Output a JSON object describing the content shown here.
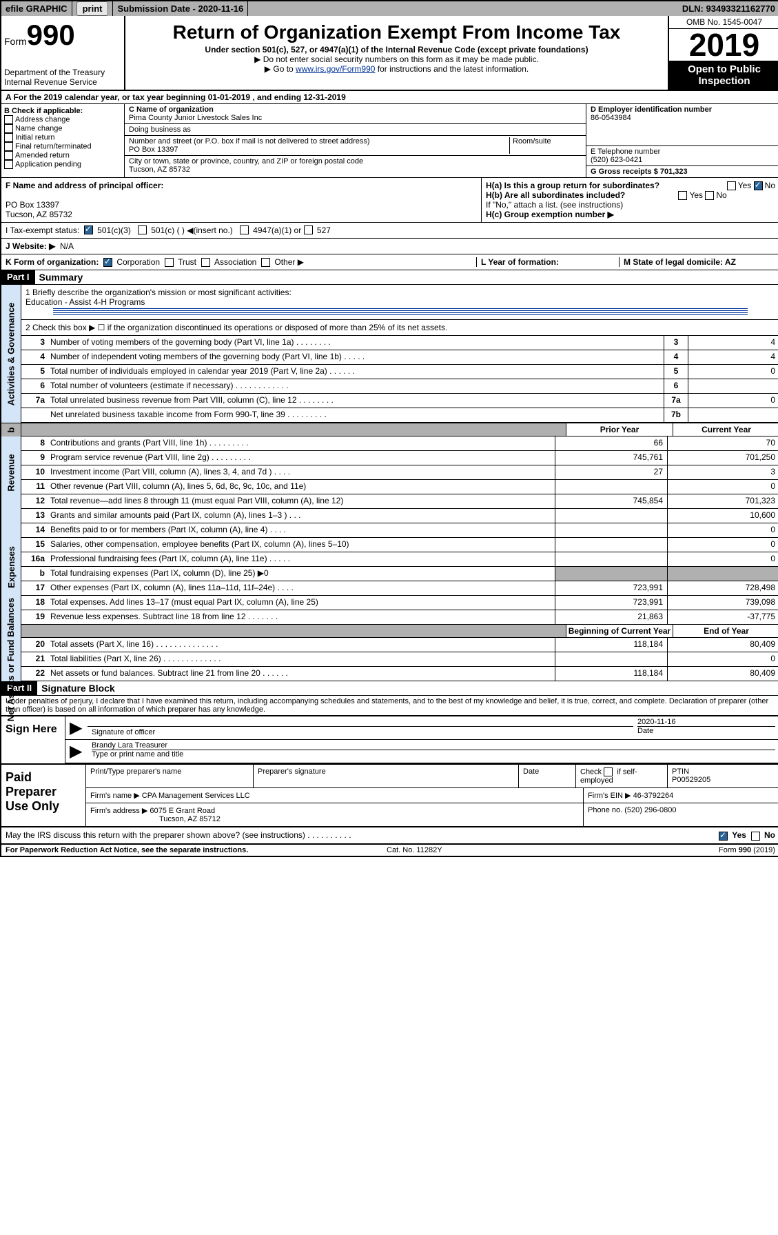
{
  "topbar": {
    "efile": "efile GRAPHIC",
    "print_btn": "print",
    "submission_label": "Submission Date - 2020-11-16",
    "dln": "DLN: 93493321162770"
  },
  "header": {
    "form_label": "Form",
    "form_number": "990",
    "dept": "Department of the Treasury\nInternal Revenue Service",
    "title": "Return of Organization Exempt From Income Tax",
    "subtitle": "Under section 501(c), 527, or 4947(a)(1) of the Internal Revenue Code (except private foundations)",
    "arrow1": "▶ Do not enter social security numbers on this form as it may be made public.",
    "arrow2_pre": "▶ Go to ",
    "arrow2_link": "www.irs.gov/Form990",
    "arrow2_post": " for instructions and the latest information.",
    "omb": "OMB No. 1545-0047",
    "year": "2019",
    "open": "Open to Public Inspection"
  },
  "row_a": "A For the 2019 calendar year, or tax year beginning 01-01-2019    , and ending 12-31-2019",
  "col_b": {
    "label": "B Check if applicable:",
    "items": [
      "Address change",
      "Name change",
      "Initial return",
      "Final return/terminated",
      "Amended return",
      "Application pending"
    ]
  },
  "col_c": {
    "name_lbl": "C Name of organization",
    "name": "Pima County Junior Livestock Sales Inc",
    "dba_lbl": "Doing business as",
    "dba": "",
    "street_lbl": "Number and street (or P.O. box if mail is not delivered to street address)",
    "room_lbl": "Room/suite",
    "street": "PO Box 13397",
    "city_lbl": "City or town, state or province, country, and ZIP or foreign postal code",
    "city": "Tucson, AZ  85732"
  },
  "col_d": {
    "ein_lbl": "D Employer identification number",
    "ein": "86-0543984",
    "tel_lbl": "E Telephone number",
    "tel": "(520) 623-0421",
    "gross_lbl": "G Gross receipts $ 701,323"
  },
  "row_f": {
    "f_lbl": "F  Name and address of principal officer:",
    "f_addr1": "PO Box 13397",
    "f_addr2": "Tucson, AZ  85732",
    "ha": "H(a)  Is this a group return for subordinates?",
    "hb": "H(b)  Are all subordinates included?",
    "hb_note": "If \"No,\" attach a list. (see instructions)",
    "hc": "H(c)  Group exemption number ▶",
    "yes": "Yes",
    "no": "No"
  },
  "row_i": {
    "lbl": "I   Tax-exempt status:",
    "opt1": "501(c)(3)",
    "opt2": "501(c) (  ) ◀(insert no.)",
    "opt3": "4947(a)(1) or",
    "opt4": "527"
  },
  "row_j": {
    "lbl": "J   Website: ▶",
    "val": "N/A"
  },
  "row_k": {
    "k": "K Form of organization:",
    "opts": [
      "Corporation",
      "Trust",
      "Association",
      "Other ▶"
    ],
    "l": "L Year of formation:",
    "m": "M State of legal domicile: AZ"
  },
  "part1": {
    "hdr": "Part I",
    "title": "Summary",
    "l1_lbl": "1  Briefly describe the organization's mission or most significant activities:",
    "l1_val": "Education - Assist 4-H Programs",
    "l2": "2   Check this box ▶ ☐  if the organization discontinued its operations or disposed of more than 25% of its net assets.",
    "sidelabels": {
      "gov": "Activities & Governance",
      "rev": "Revenue",
      "exp": "Expenses",
      "net": "Net Assets or Fund Balances"
    },
    "gov_lines": [
      {
        "n": "3",
        "t": "Number of voting members of the governing body (Part VI, line 1a)   .    .    .    .    .    .    .    .",
        "box": "3",
        "v": "4"
      },
      {
        "n": "4",
        "t": "Number of independent voting members of the governing body (Part VI, line 1b)   .    .    .    .    .",
        "box": "4",
        "v": "4"
      },
      {
        "n": "5",
        "t": "Total number of individuals employed in calendar year 2019 (Part V, line 2a)   .    .    .    .    .    .",
        "box": "5",
        "v": "0"
      },
      {
        "n": "6",
        "t": "Total number of volunteers (estimate if necessary)   .    .    .    .    .    .    .    .    .    .    .    .",
        "box": "6",
        "v": ""
      },
      {
        "n": "7a",
        "t": "Total unrelated business revenue from Part VIII, column (C), line 12   .    .    .    .    .    .    .    .",
        "box": "7a",
        "v": "0"
      },
      {
        "n": "",
        "t": "Net unrelated business taxable income from Form 990-T, line 39   .    .    .    .    .    .    .    .    .",
        "box": "7b",
        "v": ""
      }
    ],
    "col_hdrs": {
      "b": "b",
      "prior": "Prior Year",
      "current": "Current Year",
      "begin": "Beginning of Current Year",
      "end": "End of Year"
    },
    "rev_lines": [
      {
        "n": "8",
        "t": "Contributions and grants (Part VIII, line 1h)   .    .    .    .    .    .    .    .    .",
        "v1": "66",
        "v2": "70"
      },
      {
        "n": "9",
        "t": "Program service revenue (Part VIII, line 2g)   .    .    .    .    .    .    .    .    .",
        "v1": "745,761",
        "v2": "701,250"
      },
      {
        "n": "10",
        "t": "Investment income (Part VIII, column (A), lines 3, 4, and 7d )   .    .    .    .",
        "v1": "27",
        "v2": "3"
      },
      {
        "n": "11",
        "t": "Other revenue (Part VIII, column (A), lines 5, 6d, 8c, 9c, 10c, and 11e)",
        "v1": "",
        "v2": "0"
      },
      {
        "n": "12",
        "t": "Total revenue—add lines 8 through 11 (must equal Part VIII, column (A), line 12)",
        "v1": "745,854",
        "v2": "701,323"
      }
    ],
    "exp_lines": [
      {
        "n": "13",
        "t": "Grants and similar amounts paid (Part IX, column (A), lines 1–3 )   .    .    .",
        "v1": "",
        "v2": "10,600"
      },
      {
        "n": "14",
        "t": "Benefits paid to or for members (Part IX, column (A), line 4)   .    .    .    .",
        "v1": "",
        "v2": "0"
      },
      {
        "n": "15",
        "t": "Salaries, other compensation, employee benefits (Part IX, column (A), lines 5–10)",
        "v1": "",
        "v2": "0"
      },
      {
        "n": "16a",
        "t": "Professional fundraising fees (Part IX, column (A), line 11e)   .    .    .    .    .",
        "v1": "",
        "v2": "0"
      },
      {
        "n": "b",
        "t": "Total fundraising expenses (Part IX, column (D), line 25) ▶0",
        "v1": "gray",
        "v2": "gray"
      },
      {
        "n": "17",
        "t": "Other expenses (Part IX, column (A), lines 11a–11d, 11f–24e)   .    .    .    .",
        "v1": "723,991",
        "v2": "728,498"
      },
      {
        "n": "18",
        "t": "Total expenses. Add lines 13–17 (must equal Part IX, column (A), line 25)",
        "v1": "723,991",
        "v2": "739,098"
      },
      {
        "n": "19",
        "t": "Revenue less expenses. Subtract line 18 from line 12   .    .    .    .    .    .    .",
        "v1": "21,863",
        "v2": "-37,775"
      }
    ],
    "net_lines": [
      {
        "n": "20",
        "t": "Total assets (Part X, line 16)   .    .    .    .    .    .    .    .    .    .    .    .    .    .",
        "v1": "118,184",
        "v2": "80,409"
      },
      {
        "n": "21",
        "t": "Total liabilities (Part X, line 26)   .    .    .    .    .    .    .    .    .    .    .    .    .",
        "v1": "",
        "v2": "0"
      },
      {
        "n": "22",
        "t": "Net assets or fund balances. Subtract line 21 from line 20   .    .    .    .    .    .",
        "v1": "118,184",
        "v2": "80,409"
      }
    ]
  },
  "part2": {
    "hdr": "Part II",
    "title": "Signature Block",
    "perjury": "Under penalties of perjury, I declare that I have examined this return, including accompanying schedules and statements, and to the best of my knowledge and belief, it is true, correct, and complete. Declaration of preparer (other than officer) is based on all information of which preparer has any knowledge.",
    "sign_here": "Sign Here",
    "sig_officer": "Signature of officer",
    "sig_date": "2020-11-16",
    "date_lbl": "Date",
    "officer_name": "Brandy Lara  Treasurer",
    "type_name": "Type or print name and title"
  },
  "paid": {
    "label": "Paid Preparer Use Only",
    "h1": "Print/Type preparer's name",
    "h2": "Preparer's signature",
    "h3": "Date",
    "h4_pre": "Check",
    "h4_post": "if self-employed",
    "ptin_lbl": "PTIN",
    "ptin": "P00529205",
    "firm_name_lbl": "Firm's name    ▶",
    "firm_name": "CPA Management Services LLC",
    "firm_ein_lbl": "Firm's EIN ▶",
    "firm_ein": "46-3792264",
    "firm_addr_lbl": "Firm's address ▶",
    "firm_addr1": "6075 E Grant Road",
    "firm_addr2": "Tucson, AZ  85712",
    "phone_lbl": "Phone no.",
    "phone": "(520) 296-0800"
  },
  "discuss": "May the IRS discuss this return with the preparer shown above? (see instructions)   .    .    .    .    .    .    .    .    .    .",
  "footer": {
    "left": "For Paperwork Reduction Act Notice, see the separate instructions.",
    "mid": "Cat. No. 11282Y",
    "right": "Form 990 (2019)"
  }
}
